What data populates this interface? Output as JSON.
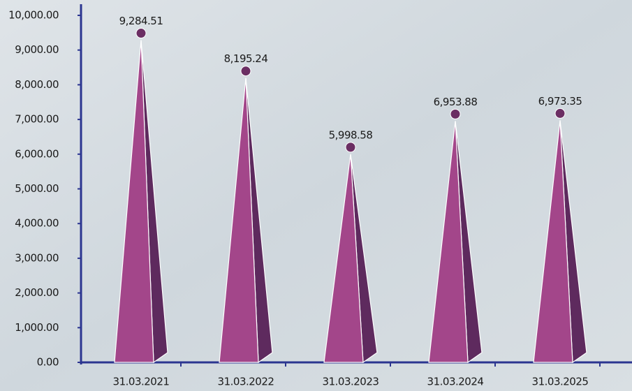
{
  "chart_data": {
    "type": "pyramid",
    "categories": [
      "31.03.2021",
      "31.03.2022",
      "31.03.2023",
      "31.03.2024",
      "31.03.2025"
    ],
    "values": [
      9284.51,
      8195.24,
      5998.58,
      6953.88,
      6973.35
    ],
    "value_labels": [
      "9,284.51",
      "8,195.24",
      "5,998.58",
      "6,953.88",
      "6,973.35"
    ],
    "color": "#a3468a",
    "ylim": [
      0,
      10000
    ],
    "yticks": [
      {
        "value": 0,
        "label": "0.00"
      },
      {
        "value": 1000,
        "label": "1,000.00"
      },
      {
        "value": 2000,
        "label": "2,000.00"
      },
      {
        "value": 3000,
        "label": "3,000.00"
      },
      {
        "value": 4000,
        "label": "4,000.00"
      },
      {
        "value": 5000,
        "label": "5,000.00"
      },
      {
        "value": 6000,
        "label": "6,000.00"
      },
      {
        "value": 7000,
        "label": "7,000.00"
      },
      {
        "value": 8000,
        "label": "8,000.00"
      },
      {
        "value": 9000,
        "label": "9,000.00"
      },
      {
        "value": 10000,
        "label": "10,000.00"
      }
    ],
    "grid": false
  }
}
